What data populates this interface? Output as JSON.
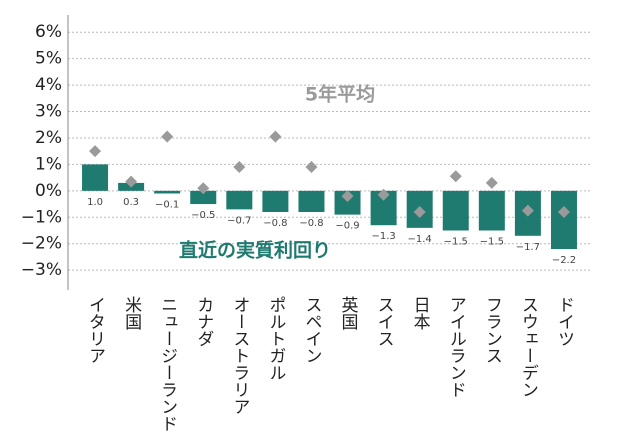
{
  "chart_data": {
    "type": "bar",
    "categories": [
      "イタリア",
      "米国",
      "ニュージーランド",
      "カナダ",
      "オーストラリア",
      "ポルトガル",
      "スペイン",
      "英国",
      "スイス",
      "日本",
      "アイルランド",
      "フランス",
      "スウェーデン",
      "ドイツ"
    ],
    "series": [
      {
        "name": "直近の実質利回り",
        "color": "#1f7a70",
        "values": [
          1.0,
          0.3,
          -0.1,
          -0.5,
          -0.7,
          -0.8,
          -0.8,
          -0.9,
          -1.3,
          -1.4,
          -1.5,
          -1.5,
          -1.7,
          -2.2
        ],
        "value_labels": [
          "1.0",
          "0.3",
          "−0.1",
          "−0.5",
          "−0.7",
          "−0.8",
          "−0.8",
          "−0.9",
          "−1.3",
          "−1.4",
          "−1.5",
          "−1.5",
          "−1.7",
          "−2.2"
        ]
      },
      {
        "name": "5年平均",
        "color": "#9a9a9a",
        "marker": "diamond",
        "values": [
          1.5,
          0.35,
          2.05,
          0.1,
          0.9,
          2.05,
          0.9,
          -0.2,
          -0.15,
          -0.8,
          0.55,
          0.3,
          -0.75,
          -0.8
        ]
      }
    ],
    "ylim": [
      -3.75,
      6.65
    ],
    "yticks": [
      {
        "value": -3,
        "label": "−3%"
      },
      {
        "value": -2,
        "label": "−2%"
      },
      {
        "value": -1,
        "label": "−1%"
      },
      {
        "value": 0,
        "label": "0%"
      },
      {
        "value": 1,
        "label": "1%"
      },
      {
        "value": 2,
        "label": "2%"
      },
      {
        "value": 3,
        "label": "3%"
      },
      {
        "value": 4,
        "label": "4%"
      },
      {
        "value": 5,
        "label": "5%"
      },
      {
        "value": 6,
        "label": "6%"
      }
    ],
    "grid": true
  }
}
